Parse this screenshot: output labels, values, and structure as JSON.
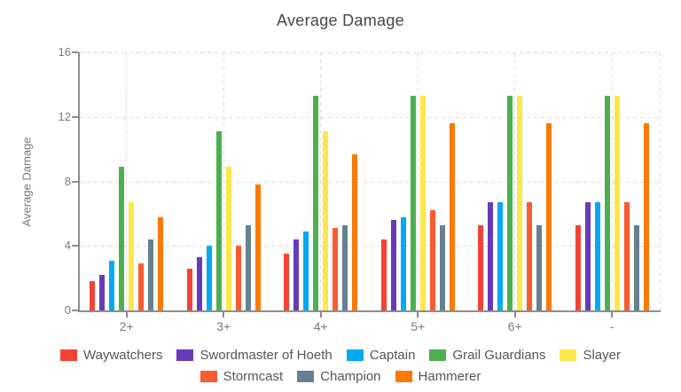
{
  "title": "Average Damage",
  "chart_data": {
    "type": "bar",
    "title": "Average Damage",
    "xlabel": "",
    "ylabel": "Average Damage",
    "ylim": [
      0,
      16
    ],
    "yticks": [
      0,
      4,
      8,
      12,
      16
    ],
    "grid": "dashed",
    "legend_position": "bottom",
    "categories": [
      "2+",
      "3+",
      "4+",
      "5+",
      "6+",
      "-"
    ],
    "series": [
      {
        "name": "Waywatchers",
        "color": "#f44336",
        "values": [
          1.8,
          2.6,
          3.5,
          4.4,
          5.3,
          5.3
        ]
      },
      {
        "name": "Swordmaster of Hoeth",
        "color": "#673ab7",
        "values": [
          2.2,
          3.3,
          4.4,
          5.6,
          6.7,
          6.7
        ]
      },
      {
        "name": "Captain",
        "color": "#03a9f4",
        "values": [
          3.1,
          4.0,
          4.9,
          5.8,
          6.7,
          6.7
        ]
      },
      {
        "name": "Grail Guardians",
        "color": "#4caf50",
        "values": [
          8.9,
          11.1,
          13.3,
          13.3,
          13.3,
          13.3
        ]
      },
      {
        "name": "Slayer",
        "color": "#fde64a",
        "values": [
          6.7,
          8.9,
          11.1,
          13.3,
          13.3,
          13.3
        ]
      },
      {
        "name": "Stormcast",
        "color": "#f95c30",
        "values": [
          2.9,
          4.0,
          5.1,
          6.2,
          6.7,
          6.7
        ]
      },
      {
        "name": "Champion",
        "color": "#66808f",
        "values": [
          4.4,
          5.3,
          5.3,
          5.3,
          5.3,
          5.3
        ]
      },
      {
        "name": "Hammerer",
        "color": "#fb7a07",
        "values": [
          5.8,
          7.8,
          9.7,
          11.6,
          11.6,
          11.6
        ]
      }
    ]
  }
}
